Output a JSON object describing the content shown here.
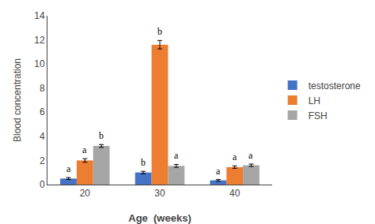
{
  "chart_data": {
    "type": "bar",
    "categories": [
      "20",
      "30",
      "40"
    ],
    "series": [
      {
        "name": "testosterone",
        "color": "#4472C4",
        "values": [
          0.5,
          1.0,
          0.35
        ],
        "errors": [
          0.08,
          0.1,
          0.07
        ],
        "annotations": [
          "a",
          "b",
          "a"
        ]
      },
      {
        "name": "LH",
        "color": "#ED7D31",
        "values": [
          2.0,
          11.6,
          1.45
        ],
        "errors": [
          0.15,
          0.35,
          0.1
        ],
        "annotations": [
          "a",
          "b",
          "a"
        ]
      },
      {
        "name": "FSH",
        "color": "#A6A6A6",
        "values": [
          3.2,
          1.55,
          1.6
        ],
        "errors": [
          0.12,
          0.12,
          0.1
        ],
        "annotations": [
          "b",
          "a",
          "a"
        ]
      }
    ],
    "xlabel": "Age  (weeks)",
    "ylabel": "Blood concentration",
    "ylim": [
      0,
      14
    ],
    "yticks": [
      0,
      2,
      4,
      6,
      8,
      10,
      12,
      14
    ],
    "grid": false,
    "legend": "right"
  }
}
